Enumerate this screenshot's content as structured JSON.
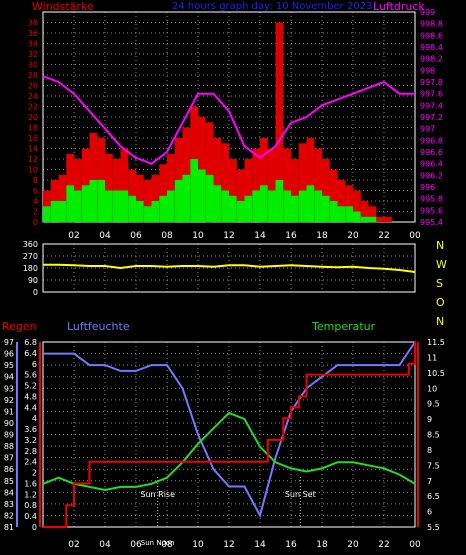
{
  "header": {
    "wind_label": "Windstärke",
    "title": "24 hours graph day: 10 November 2023",
    "pressure_label": "Luftdruck"
  },
  "colors": {
    "wind_gust": "#e00000",
    "wind_avg": "#00ee00",
    "pressure": "#ff00ff",
    "direction": "#ffff00",
    "humidity": "#7777ff",
    "temperature": "#22dd22",
    "rain": "#ee0000",
    "axis": "#ffffff",
    "grid": "#8a8a8a"
  },
  "time_axis": {
    "labels": [
      "02",
      "04",
      "06",
      "08",
      "10",
      "12",
      "14",
      "16",
      "18",
      "20",
      "22",
      "00"
    ]
  },
  "panel2": {
    "compass": [
      "N",
      "W",
      "S",
      "O",
      "N"
    ]
  },
  "panel3": {
    "rain_label": "Regen",
    "humidity_label": "Luftfeuchte",
    "temperature_label": "Temperatur",
    "sunrise_label": "Sun Rise",
    "sunset_label": "Sun Set",
    "noon_label": "Sun Noon"
  },
  "chart_data": [
    {
      "type": "bar",
      "name": "wind",
      "ylim": [
        0,
        40
      ],
      "yticks": [
        0,
        2,
        4,
        6,
        8,
        10,
        12,
        14,
        16,
        18,
        20,
        22,
        24,
        26,
        28,
        30,
        32,
        34,
        36,
        38
      ],
      "x_hours": [
        0.5,
        1,
        1.5,
        2,
        2.5,
        3,
        3.5,
        4,
        4.5,
        5,
        5.5,
        6,
        6.5,
        7,
        7.5,
        8,
        8.5,
        9,
        9.5,
        10,
        10.5,
        11,
        11.5,
        12,
        12.5,
        13,
        13.5,
        14,
        14.5,
        15,
        15.5,
        16,
        16.5,
        17,
        17.5,
        18,
        18.5,
        19,
        19.5,
        20,
        20.5,
        21,
        21.5,
        22,
        22.5,
        23,
        23.5,
        24
      ],
      "series": [
        {
          "values": [
            6,
            8,
            9,
            13,
            12,
            14,
            17,
            16,
            13,
            12,
            14,
            10,
            9,
            8,
            9,
            11,
            13,
            16,
            18,
            22,
            20,
            19,
            16,
            15,
            12,
            10,
            12,
            14,
            16,
            14,
            38,
            14,
            12,
            15,
            16,
            14,
            12,
            10,
            8,
            7,
            6,
            4,
            3,
            1,
            1,
            0,
            0,
            0
          ]
        },
        {
          "values": [
            3,
            4,
            4,
            7,
            6,
            7,
            8,
            8,
            6,
            6,
            6,
            5,
            4,
            3,
            4,
            5,
            6,
            8,
            9,
            12,
            10,
            9,
            7,
            6,
            5,
            4,
            5,
            6,
            7,
            6,
            8,
            6,
            5,
            6,
            7,
            6,
            5,
            4,
            3,
            3,
            2,
            1,
            1,
            0,
            0,
            0,
            0,
            0
          ]
        }
      ]
    },
    {
      "type": "line",
      "name": "pressure",
      "ylim": [
        995.4,
        999
      ],
      "yticks": [
        995.4,
        995.6,
        995.8,
        996,
        996.2,
        996.4,
        996.6,
        996.8,
        997,
        997.2,
        997.4,
        997.6,
        997.8,
        998,
        998.2,
        998.4,
        998.6,
        998.8,
        999
      ],
      "x": [
        0,
        1,
        2,
        3,
        4,
        5,
        6,
        7,
        8,
        9,
        10,
        11,
        12,
        13,
        14,
        15,
        16,
        17,
        18,
        19,
        20,
        21,
        22,
        23,
        24
      ],
      "y": [
        997.9,
        997.8,
        997.6,
        997.3,
        997,
        996.7,
        996.5,
        996.4,
        996.6,
        997.1,
        997.6,
        997.6,
        997.3,
        996.7,
        996.5,
        996.7,
        997.1,
        997.2,
        997.4,
        997.5,
        997.6,
        997.7,
        997.8,
        997.6,
        997.6
      ]
    },
    {
      "type": "line",
      "name": "wind_direction",
      "ylim": [
        0,
        360
      ],
      "yticks": [
        0,
        90,
        180,
        270,
        360
      ],
      "x": [
        0,
        1,
        2,
        3,
        4,
        5,
        6,
        7,
        8,
        9,
        10,
        11,
        12,
        13,
        14,
        15,
        16,
        17,
        18,
        19,
        20,
        21,
        22,
        23,
        24
      ],
      "y": [
        205,
        205,
        200,
        195,
        195,
        180,
        195,
        195,
        190,
        195,
        195,
        190,
        200,
        200,
        190,
        195,
        200,
        195,
        190,
        185,
        190,
        180,
        175,
        165,
        150
      ]
    },
    {
      "type": "line",
      "name": "humidity",
      "ylim": [
        81,
        97
      ],
      "yticks": [
        81,
        82,
        83,
        84,
        85,
        86,
        87,
        88,
        89,
        90,
        91,
        92,
        93,
        94,
        95,
        96,
        97
      ],
      "x": [
        0,
        1,
        2,
        3,
        4,
        5,
        6,
        7,
        8,
        9,
        10,
        11,
        12,
        13,
        14,
        15,
        16,
        17,
        18,
        19,
        20,
        21,
        22,
        23,
        24
      ],
      "y": [
        96,
        96,
        96,
        95,
        95,
        94.5,
        94.5,
        95,
        95,
        93,
        89,
        86,
        84.5,
        84.5,
        82,
        87,
        91,
        93,
        94,
        95,
        95,
        95,
        95,
        95,
        97
      ]
    },
    {
      "type": "line",
      "name": "temperature",
      "ylim": [
        5.5,
        11.5
      ],
      "yticks": [
        5.5,
        6,
        6.5,
        7,
        7.5,
        8,
        8.5,
        9,
        9.5,
        10,
        10.5,
        11,
        11.5
      ],
      "x": [
        0,
        1,
        2,
        3,
        4,
        5,
        6,
        7,
        8,
        9,
        10,
        11,
        12,
        13,
        14,
        15,
        16,
        17,
        18,
        19,
        20,
        21,
        22,
        23,
        24
      ],
      "y": [
        6.9,
        7.1,
        6.9,
        6.8,
        6.7,
        6.8,
        6.8,
        6.9,
        7.1,
        7.6,
        8.2,
        8.7,
        9.2,
        9.0,
        8.1,
        7.6,
        7.4,
        7.3,
        7.4,
        7.6,
        7.6,
        7.5,
        7.4,
        7.2,
        6.9
      ]
    },
    {
      "type": "line",
      "name": "rain",
      "ylim": [
        0,
        6.8
      ],
      "yticks": [
        0,
        0.4,
        0.8,
        1.2,
        1.6,
        2,
        2.4,
        2.8,
        3.2,
        3.6,
        4,
        4.4,
        4.8,
        5.2,
        5.6,
        6,
        6.4,
        6.8
      ],
      "x": [
        0,
        1,
        1.5,
        2,
        3,
        4,
        5,
        6,
        7,
        8,
        9,
        10,
        11,
        12,
        13,
        14,
        14.5,
        15,
        15.5,
        16,
        16.5,
        17,
        18,
        19,
        20,
        21,
        22,
        23,
        23.6,
        24
      ],
      "y": [
        0,
        0,
        0.8,
        1.6,
        2.4,
        2.4,
        2.4,
        2.4,
        2.4,
        2.4,
        2.4,
        2.4,
        2.4,
        2.4,
        2.4,
        2.4,
        3.2,
        3.2,
        4,
        4.4,
        4.8,
        5.6,
        5.6,
        5.6,
        5.6,
        5.6,
        5.6,
        5.6,
        6.0,
        6.8
      ]
    }
  ]
}
